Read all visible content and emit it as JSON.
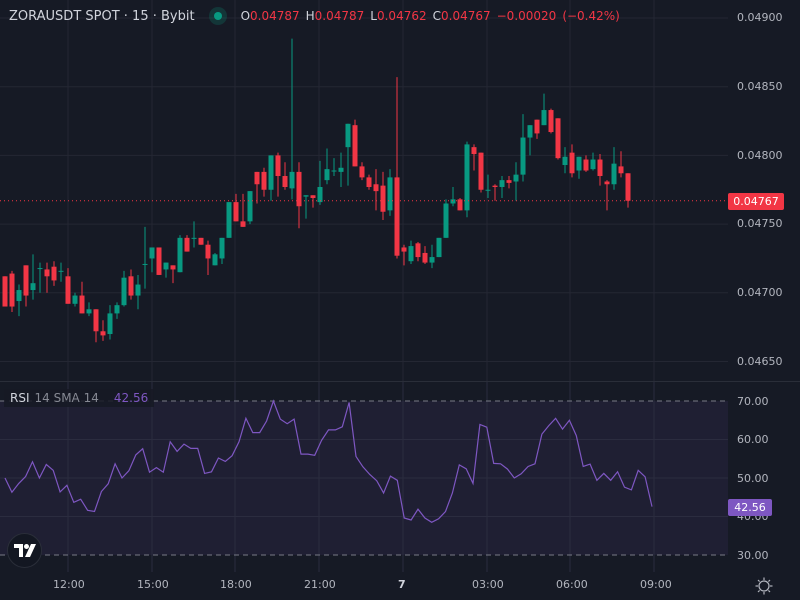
{
  "header": {
    "symbol": "ZORAUSDT SPOT · 15 · Bybit",
    "market_status_icon": "market-open-dot",
    "ohlc": {
      "open_label": "O",
      "open": "0.04787",
      "high_label": "H",
      "high": "0.04787",
      "low_label": "L",
      "low": "0.04762",
      "close_label": "C",
      "close": "0.04767",
      "change": "−0.00020",
      "change_pct": "(−0.42%)"
    }
  },
  "price_axis": {
    "labels": [
      "0.04900",
      "0.04850",
      "0.04800",
      "0.04750",
      "0.04700",
      "0.04650"
    ],
    "current_price": "0.04767"
  },
  "rsi": {
    "name": "RSI",
    "params": "14 SMA 14",
    "value": "42.56",
    "axis_labels": [
      "70.00",
      "60.00",
      "50.00",
      "40.00",
      "30.00"
    ]
  },
  "time_axis": {
    "labels": [
      "12:00",
      "15:00",
      "18:00",
      "21:00",
      "7",
      "03:00",
      "06:00",
      "09:00"
    ]
  },
  "colors": {
    "up": "#089981",
    "down": "#f23645",
    "rsi_line": "#7e57c2",
    "background": "#161a25",
    "grid": "#242733"
  },
  "chart_data": [
    {
      "type": "candlestick",
      "title": "ZORAUSDT SPOT · 15 · Bybit",
      "xlabel": "",
      "ylabel": "",
      "ylim": [
        0.0463,
        0.0491
      ],
      "x_ticks": [
        "12:00",
        "15:00",
        "18:00",
        "21:00",
        "7",
        "03:00",
        "06:00",
        "09:00"
      ],
      "y_ticks": [
        0.049,
        0.0485,
        0.048,
        0.0475,
        0.047,
        0.0465
      ],
      "last_price": 0.04767,
      "candles": [
        {
          "o": 0.04712,
          "h": 0.04712,
          "l": 0.0469,
          "c": 0.0469
        },
        {
          "o": 0.04714,
          "h": 0.04716,
          "l": 0.04686,
          "c": 0.0469
        },
        {
          "o": 0.04694,
          "h": 0.04706,
          "l": 0.04683,
          "c": 0.04702
        },
        {
          "o": 0.0472,
          "h": 0.0472,
          "l": 0.0469,
          "c": 0.04698
        },
        {
          "o": 0.04702,
          "h": 0.04728,
          "l": 0.04695,
          "c": 0.04707
        },
        {
          "o": 0.04718,
          "h": 0.04722,
          "l": 0.047,
          "c": 0.04718
        },
        {
          "o": 0.04717,
          "h": 0.04722,
          "l": 0.047,
          "c": 0.04712
        },
        {
          "o": 0.04719,
          "h": 0.04723,
          "l": 0.04705,
          "c": 0.04709
        },
        {
          "o": 0.04716,
          "h": 0.04722,
          "l": 0.04708,
          "c": 0.04716
        },
        {
          "o": 0.04712,
          "h": 0.04718,
          "l": 0.04695,
          "c": 0.04692
        },
        {
          "o": 0.04692,
          "h": 0.047,
          "l": 0.0469,
          "c": 0.04698
        },
        {
          "o": 0.04698,
          "h": 0.04708,
          "l": 0.04688,
          "c": 0.04685
        },
        {
          "o": 0.04685,
          "h": 0.04693,
          "l": 0.04683,
          "c": 0.04688
        },
        {
          "o": 0.04688,
          "h": 0.0468,
          "l": 0.04664,
          "c": 0.04672
        },
        {
          "o": 0.04672,
          "h": 0.0468,
          "l": 0.04665,
          "c": 0.04669
        },
        {
          "o": 0.0467,
          "h": 0.04691,
          "l": 0.04666,
          "c": 0.04685
        },
        {
          "o": 0.04685,
          "h": 0.04693,
          "l": 0.04681,
          "c": 0.04691
        },
        {
          "o": 0.04691,
          "h": 0.04716,
          "l": 0.0469,
          "c": 0.04711
        },
        {
          "o": 0.04712,
          "h": 0.04717,
          "l": 0.04695,
          "c": 0.04698
        },
        {
          "o": 0.04698,
          "h": 0.04713,
          "l": 0.04688,
          "c": 0.04706
        },
        {
          "o": 0.04721,
          "h": 0.04748,
          "l": 0.04703,
          "c": 0.04721
        },
        {
          "o": 0.04725,
          "h": 0.04729,
          "l": 0.04715,
          "c": 0.04733
        },
        {
          "o": 0.04733,
          "h": 0.04733,
          "l": 0.04714,
          "c": 0.04713
        },
        {
          "o": 0.04717,
          "h": 0.04722,
          "l": 0.04711,
          "c": 0.04722
        },
        {
          "o": 0.0472,
          "h": 0.0472,
          "l": 0.04707,
          "c": 0.04717
        },
        {
          "o": 0.04715,
          "h": 0.04742,
          "l": 0.04715,
          "c": 0.0474
        },
        {
          "o": 0.0474,
          "h": 0.04742,
          "l": 0.0473,
          "c": 0.0473
        },
        {
          "o": 0.0474,
          "h": 0.04752,
          "l": 0.04733,
          "c": 0.0474
        },
        {
          "o": 0.0474,
          "h": 0.0474,
          "l": 0.04736,
          "c": 0.04735
        },
        {
          "o": 0.04735,
          "h": 0.04738,
          "l": 0.04713,
          "c": 0.04725
        },
        {
          "o": 0.0472,
          "h": 0.04729,
          "l": 0.0472,
          "c": 0.04728
        },
        {
          "o": 0.04725,
          "h": 0.04736,
          "l": 0.04721,
          "c": 0.0474
        },
        {
          "o": 0.0474,
          "h": 0.04763,
          "l": 0.04746,
          "c": 0.04766
        },
        {
          "o": 0.04766,
          "h": 0.04772,
          "l": 0.04753,
          "c": 0.04752
        },
        {
          "o": 0.04752,
          "h": 0.04772,
          "l": 0.04748,
          "c": 0.04748
        },
        {
          "o": 0.04752,
          "h": 0.0477,
          "l": 0.0475,
          "c": 0.04774
        },
        {
          "o": 0.04788,
          "h": 0.04788,
          "l": 0.04765,
          "c": 0.04779
        },
        {
          "o": 0.04788,
          "h": 0.04791,
          "l": 0.0477,
          "c": 0.04775
        },
        {
          "o": 0.04775,
          "h": 0.04785,
          "l": 0.04767,
          "c": 0.048
        },
        {
          "o": 0.048,
          "h": 0.04802,
          "l": 0.0477,
          "c": 0.04785
        },
        {
          "o": 0.04785,
          "h": 0.04795,
          "l": 0.04775,
          "c": 0.04777
        },
        {
          "o": 0.04776,
          "h": 0.04885,
          "l": 0.04768,
          "c": 0.04788
        },
        {
          "o": 0.04788,
          "h": 0.04795,
          "l": 0.04747,
          "c": 0.04763
        },
        {
          "o": 0.0477,
          "h": 0.0477,
          "l": 0.04754,
          "c": 0.04771
        },
        {
          "o": 0.04771,
          "h": 0.0477,
          "l": 0.04762,
          "c": 0.04769
        },
        {
          "o": 0.04766,
          "h": 0.04796,
          "l": 0.04764,
          "c": 0.04777
        },
        {
          "o": 0.04782,
          "h": 0.04805,
          "l": 0.04779,
          "c": 0.0479
        },
        {
          "o": 0.04789,
          "h": 0.04798,
          "l": 0.04785,
          "c": 0.04789
        },
        {
          "o": 0.04788,
          "h": 0.04802,
          "l": 0.04777,
          "c": 0.04791
        },
        {
          "o": 0.04806,
          "h": 0.04821,
          "l": 0.04778,
          "c": 0.04823
        },
        {
          "o": 0.04822,
          "h": 0.04826,
          "l": 0.04792,
          "c": 0.04792
        },
        {
          "o": 0.04792,
          "h": 0.04795,
          "l": 0.04782,
          "c": 0.04784
        },
        {
          "o": 0.04784,
          "h": 0.04786,
          "l": 0.04775,
          "c": 0.04777
        },
        {
          "o": 0.04779,
          "h": 0.0479,
          "l": 0.0476,
          "c": 0.04774
        },
        {
          "o": 0.04778,
          "h": 0.04788,
          "l": 0.04753,
          "c": 0.04759
        },
        {
          "o": 0.0476,
          "h": 0.0479,
          "l": 0.04756,
          "c": 0.04784
        },
        {
          "o": 0.04784,
          "h": 0.04857,
          "l": 0.04725,
          "c": 0.04727
        },
        {
          "o": 0.04733,
          "h": 0.04735,
          "l": 0.0472,
          "c": 0.0473
        },
        {
          "o": 0.04723,
          "h": 0.04738,
          "l": 0.04721,
          "c": 0.04734
        },
        {
          "o": 0.04736,
          "h": 0.04737,
          "l": 0.04723,
          "c": 0.04726
        },
        {
          "o": 0.04729,
          "h": 0.04734,
          "l": 0.04721,
          "c": 0.04722
        },
        {
          "o": 0.04722,
          "h": 0.04735,
          "l": 0.04718,
          "c": 0.04726
        },
        {
          "o": 0.04726,
          "h": 0.0474,
          "l": 0.04728,
          "c": 0.0474
        },
        {
          "o": 0.0474,
          "h": 0.04768,
          "l": 0.04742,
          "c": 0.04765
        },
        {
          "o": 0.04765,
          "h": 0.04777,
          "l": 0.04763,
          "c": 0.04768
        },
        {
          "o": 0.04768,
          "h": 0.04769,
          "l": 0.04761,
          "c": 0.0476
        },
        {
          "o": 0.0476,
          "h": 0.0481,
          "l": 0.04755,
          "c": 0.04808
        },
        {
          "o": 0.04806,
          "h": 0.04808,
          "l": 0.04789,
          "c": 0.04801
        },
        {
          "o": 0.04802,
          "h": 0.04799,
          "l": 0.04773,
          "c": 0.04775
        },
        {
          "o": 0.04775,
          "h": 0.04786,
          "l": 0.04769,
          "c": 0.04775
        },
        {
          "o": 0.04778,
          "h": 0.04779,
          "l": 0.04767,
          "c": 0.04777
        },
        {
          "o": 0.04777,
          "h": 0.04785,
          "l": 0.04769,
          "c": 0.04782
        },
        {
          "o": 0.04782,
          "h": 0.04785,
          "l": 0.04776,
          "c": 0.0478
        },
        {
          "o": 0.04781,
          "h": 0.04795,
          "l": 0.04767,
          "c": 0.04786
        },
        {
          "o": 0.04786,
          "h": 0.0483,
          "l": 0.04781,
          "c": 0.04813
        },
        {
          "o": 0.04813,
          "h": 0.04821,
          "l": 0.048,
          "c": 0.04822
        },
        {
          "o": 0.04826,
          "h": 0.04826,
          "l": 0.04812,
          "c": 0.04816
        },
        {
          "o": 0.04822,
          "h": 0.04845,
          "l": 0.04826,
          "c": 0.04833
        },
        {
          "o": 0.04833,
          "h": 0.04834,
          "l": 0.04816,
          "c": 0.04817
        },
        {
          "o": 0.04827,
          "h": 0.04827,
          "l": 0.04797,
          "c": 0.04798
        },
        {
          "o": 0.04793,
          "h": 0.04806,
          "l": 0.04787,
          "c": 0.04799
        },
        {
          "o": 0.04802,
          "h": 0.04808,
          "l": 0.04784,
          "c": 0.04787
        },
        {
          "o": 0.04789,
          "h": 0.04797,
          "l": 0.04783,
          "c": 0.04799
        },
        {
          "o": 0.04797,
          "h": 0.048,
          "l": 0.04788,
          "c": 0.04789
        },
        {
          "o": 0.0479,
          "h": 0.04802,
          "l": 0.04789,
          "c": 0.04797
        },
        {
          "o": 0.04797,
          "h": 0.04801,
          "l": 0.04778,
          "c": 0.04785
        },
        {
          "o": 0.04781,
          "h": 0.04782,
          "l": 0.0476,
          "c": 0.04779
        },
        {
          "o": 0.04779,
          "h": 0.04806,
          "l": 0.04775,
          "c": 0.04794
        },
        {
          "o": 0.04792,
          "h": 0.04803,
          "l": 0.04784,
          "c": 0.04787
        },
        {
          "o": 0.04787,
          "h": 0.04787,
          "l": 0.04762,
          "c": 0.04767
        }
      ]
    },
    {
      "type": "line",
      "title": "RSI 14 SMA 14",
      "ylim": [
        30,
        70
      ],
      "y_ticks": [
        70,
        60,
        50,
        40,
        30
      ],
      "bands": {
        "upper": 70,
        "lower": 30
      },
      "last_value": 42.56,
      "series": [
        {
          "name": "RSI",
          "values": [
            50.0,
            46.3,
            48.6,
            50.4,
            54.2,
            50.0,
            53.5,
            52.0,
            46.4,
            48.1,
            43.7,
            44.5,
            41.6,
            41.3,
            46.5,
            48.5,
            53.7,
            50.0,
            51.9,
            56.0,
            57.6,
            51.5,
            52.7,
            51.5,
            59.4,
            56.9,
            58.8,
            57.7,
            57.7,
            51.2,
            51.6,
            55.2,
            54.3,
            55.8,
            59.4,
            65.5,
            61.8,
            61.8,
            64.8,
            70.0,
            65.3,
            64.1,
            65.3,
            56.2,
            56.2,
            55.9,
            59.8,
            62.5,
            62.5,
            63.3,
            69.6,
            55.6,
            52.9,
            50.9,
            49.3,
            46.1,
            50.5,
            49.4,
            39.6,
            39.1,
            41.9,
            39.6,
            38.5,
            39.4,
            41.3,
            46.1,
            53.4,
            52.4,
            48.6,
            63.9,
            63.2,
            53.8,
            53.7,
            52.3,
            50.0,
            51.1,
            53.0,
            53.7,
            61.4,
            63.6,
            65.5,
            62.7,
            65.0,
            61.0,
            53.0,
            53.6,
            49.4,
            51.2,
            49.4,
            51.6,
            47.6,
            46.9,
            52.0,
            50.3,
            42.56
          ]
        }
      ]
    }
  ]
}
